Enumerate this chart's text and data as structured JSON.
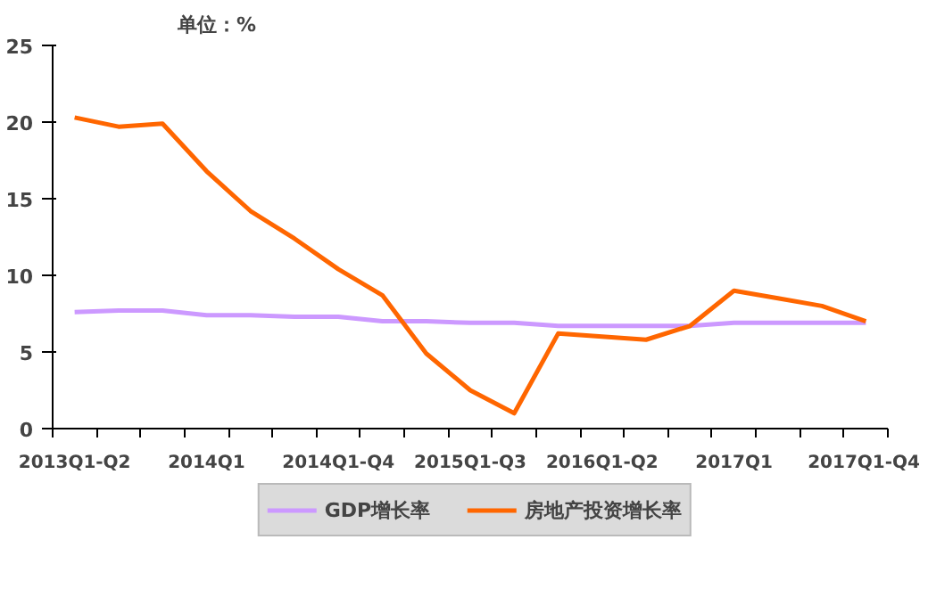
{
  "chart_data": {
    "type": "line",
    "title": "单位：%",
    "categories": [
      "2013Q1-Q2",
      null,
      null,
      "2014Q1",
      null,
      null,
      "2014Q1-Q4",
      null,
      null,
      "2015Q1-Q3",
      null,
      null,
      "2016Q1-Q2",
      null,
      null,
      "2017Q1",
      null,
      null,
      "2017Q1-Q4"
    ],
    "series": [
      {
        "name": "GDP增长率",
        "color": "#cc99ff",
        "values": [
          7.6,
          7.7,
          7.7,
          7.4,
          7.4,
          7.3,
          7.3,
          7.0,
          7.0,
          6.9,
          6.9,
          6.7,
          6.7,
          6.7,
          6.7,
          6.9,
          6.9,
          6.9,
          6.9
        ]
      },
      {
        "name": "房地产投资增长率",
        "color": "#ff6600",
        "values": [
          20.3,
          19.7,
          19.9,
          16.8,
          14.2,
          12.4,
          10.4,
          8.7,
          4.9,
          2.5,
          1.0,
          6.2,
          6.0,
          5.8,
          6.7,
          9.0,
          8.5,
          8.0,
          7.0
        ]
      }
    ],
    "ylim": [
      0,
      25
    ],
    "yticks": [
      0,
      5,
      10,
      15,
      20,
      25
    ],
    "grid": false,
    "legend": "bottom",
    "marker": "none",
    "line_style": "solid"
  }
}
